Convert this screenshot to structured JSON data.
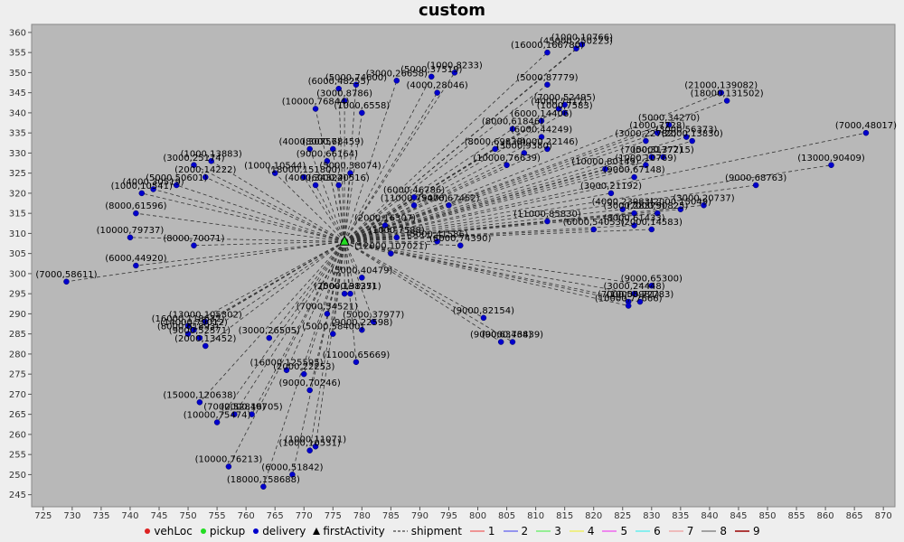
{
  "chart_data": {
    "type": "scatter",
    "title": "custom",
    "xlabel": "",
    "ylabel": "",
    "xlim": [
      723,
      872
    ],
    "ylim": [
      242,
      362
    ],
    "x_ticks": [
      725,
      730,
      735,
      740,
      745,
      750,
      755,
      760,
      765,
      770,
      775,
      780,
      785,
      790,
      795,
      800,
      805,
      810,
      815,
      820,
      825,
      830,
      835,
      840,
      845,
      850,
      855,
      860,
      865,
      870
    ],
    "y_ticks": [
      245,
      250,
      255,
      260,
      265,
      270,
      275,
      280,
      285,
      290,
      295,
      300,
      305,
      310,
      315,
      320,
      325,
      330,
      335,
      340,
      345,
      350,
      355,
      360
    ],
    "grid": false,
    "legend_placement": "bottom",
    "depot": {
      "x": 777,
      "y": 308
    },
    "legend": [
      {
        "name": "vehLoc",
        "marker": "dot",
        "color": "#dd2222"
      },
      {
        "name": "pickup",
        "marker": "dot",
        "color": "#22dd22"
      },
      {
        "name": "delivery",
        "marker": "dot",
        "color": "#0000cc"
      },
      {
        "name": "firstActivity",
        "marker": "triangle",
        "color": "#000000"
      },
      {
        "name": "shipment",
        "marker": "dash",
        "color": "#444444"
      },
      {
        "name": "1",
        "marker": "line",
        "color": "#ee7777"
      },
      {
        "name": "2",
        "marker": "line",
        "color": "#7777ee"
      },
      {
        "name": "3",
        "marker": "line",
        "color": "#77ee77"
      },
      {
        "name": "4",
        "marker": "line",
        "color": "#eeee66"
      },
      {
        "name": "5",
        "marker": "line",
        "color": "#ee66ee"
      },
      {
        "name": "6",
        "marker": "line",
        "color": "#66eeee"
      },
      {
        "name": "7",
        "marker": "line",
        "color": "#eeaaaa"
      },
      {
        "name": "8",
        "marker": "line",
        "color": "#888888"
      },
      {
        "name": "9",
        "marker": "line",
        "color": "#990000"
      }
    ],
    "points": [
      {
        "x": 812,
        "y": 355,
        "label": "(16000,166780)"
      },
      {
        "x": 817,
        "y": 356,
        "label": "(45000,250223)"
      },
      {
        "x": 818,
        "y": 357,
        "label": "(1000,10766)"
      },
      {
        "x": 843,
        "y": 343,
        "label": "(18000,131502)"
      },
      {
        "x": 842,
        "y": 345,
        "label": "(21000,139082)"
      },
      {
        "x": 812,
        "y": 347,
        "label": "(5000,87779)"
      },
      {
        "x": 815,
        "y": 342,
        "label": "(7000,52495)"
      },
      {
        "x": 815,
        "y": 340,
        "label": "(1000,7583)"
      },
      {
        "x": 814,
        "y": 341,
        "label": "(4000,7417)"
      },
      {
        "x": 811,
        "y": 338,
        "label": "(6000,14406)"
      },
      {
        "x": 806,
        "y": 336,
        "label": "(8000,61846)"
      },
      {
        "x": 811,
        "y": 334,
        "label": "(6000,44249)"
      },
      {
        "x": 812,
        "y": 331,
        "label": "(4000,22146)"
      },
      {
        "x": 808,
        "y": 330,
        "label": "(3000,9380)"
      },
      {
        "x": 803,
        "y": 331,
        "label": "(8000,69838)"
      },
      {
        "x": 805,
        "y": 327,
        "label": "(10000,76639)"
      },
      {
        "x": 833,
        "y": 337,
        "label": "(5000,34270)"
      },
      {
        "x": 831,
        "y": 335,
        "label": "(1000,7728)"
      },
      {
        "x": 836,
        "y": 334,
        "label": "(3000,56373)"
      },
      {
        "x": 837,
        "y": 333,
        "label": "(2000,13830)"
      },
      {
        "x": 829,
        "y": 333,
        "label": "(3000,22782)"
      },
      {
        "x": 867,
        "y": 335,
        "label": "(7000,48017)"
      },
      {
        "x": 861,
        "y": 327,
        "label": "(13000,90409)"
      },
      {
        "x": 848,
        "y": 322,
        "label": "(9000,68763)"
      },
      {
        "x": 830,
        "y": 329,
        "label": "(7000,31772)"
      },
      {
        "x": 832,
        "y": 329,
        "label": "(5000,37715)"
      },
      {
        "x": 829,
        "y": 327,
        "label": "(1000,10769)"
      },
      {
        "x": 827,
        "y": 324,
        "label": "(9000,67148)"
      },
      {
        "x": 822,
        "y": 326,
        "label": "(10000,80149)"
      },
      {
        "x": 823,
        "y": 320,
        "label": "(3000,21192)"
      },
      {
        "x": 825,
        "y": 316,
        "label": "(4000,23983)"
      },
      {
        "x": 827,
        "y": 315,
        "label": "(3000,28379)"
      },
      {
        "x": 831,
        "y": 315,
        "label": "(7000,50825)"
      },
      {
        "x": 835,
        "y": 316,
        "label": "(2000,15049)"
      },
      {
        "x": 839,
        "y": 317,
        "label": "(3000,20737)"
      },
      {
        "x": 827,
        "y": 312,
        "label": "(8000,61433)"
      },
      {
        "x": 830,
        "y": 311,
        "label": "(2000,14583)"
      },
      {
        "x": 820,
        "y": 311,
        "label": "(6000,54053)"
      },
      {
        "x": 812,
        "y": 313,
        "label": "(11000,85830)"
      },
      {
        "x": 795,
        "y": 317,
        "label": "(9000,67452)"
      },
      {
        "x": 789,
        "y": 319,
        "label": "(6000,46786)"
      },
      {
        "x": 789,
        "y": 317,
        "label": "(11000,75476)"
      },
      {
        "x": 784,
        "y": 312,
        "label": "(2000,16307)"
      },
      {
        "x": 786,
        "y": 309,
        "label": "(1000,7588)"
      },
      {
        "x": 793,
        "y": 308,
        "label": "(5000,41586)"
      },
      {
        "x": 797,
        "y": 307,
        "label": "(8000,74390)"
      },
      {
        "x": 785,
        "y": 305,
        "label": "(12000,107021)"
      },
      {
        "x": 830,
        "y": 297,
        "label": "(9000,65300)"
      },
      {
        "x": 827,
        "y": 295,
        "label": "(3000,24448)"
      },
      {
        "x": 826,
        "y": 293,
        "label": "(7000,55981)"
      },
      {
        "x": 828,
        "y": 293,
        "label": "(10000,72783)"
      },
      {
        "x": 826,
        "y": 292,
        "label": "(10000,77666)"
      },
      {
        "x": 801,
        "y": 289,
        "label": "(9000,82154)"
      },
      {
        "x": 804,
        "y": 283,
        "label": "(9000,63468)"
      },
      {
        "x": 806,
        "y": 283,
        "label": "(9000,73439)"
      },
      {
        "x": 780,
        "y": 299,
        "label": "(5000,40479)"
      },
      {
        "x": 778,
        "y": 295,
        "label": "(5000,38351)"
      },
      {
        "x": 777,
        "y": 295,
        "label": "(2000,19127)"
      },
      {
        "x": 774,
        "y": 290,
        "label": "(7000,54521)"
      },
      {
        "x": 782,
        "y": 288,
        "label": "(5000,37977)"
      },
      {
        "x": 780,
        "y": 286,
        "label": "(9000,22598)"
      },
      {
        "x": 775,
        "y": 285,
        "label": "(5000,58400)"
      },
      {
        "x": 779,
        "y": 278,
        "label": "(11000,65669)"
      },
      {
        "x": 771,
        "y": 271,
        "label": "(9000,70246)"
      },
      {
        "x": 764,
        "y": 284,
        "label": "(3000,26505)"
      },
      {
        "x": 767,
        "y": 276,
        "label": "(16000,125595)"
      },
      {
        "x": 770,
        "y": 275,
        "label": "(2000,22253)"
      },
      {
        "x": 771,
        "y": 256,
        "label": "(1000,10531)"
      },
      {
        "x": 772,
        "y": 257,
        "label": "(1000,11071)"
      },
      {
        "x": 753,
        "y": 288,
        "label": "(13000,105302)"
      },
      {
        "x": 750,
        "y": 287,
        "label": "(16000,118632)"
      },
      {
        "x": 751,
        "y": 286,
        "label": "(14000,79012)"
      },
      {
        "x": 750,
        "y": 285,
        "label": "(8000,61893)"
      },
      {
        "x": 752,
        "y": 284,
        "label": "(9000,52571)"
      },
      {
        "x": 753,
        "y": 282,
        "label": "(2000,13452)"
      },
      {
        "x": 752,
        "y": 268,
        "label": "(15000,120638)"
      },
      {
        "x": 758,
        "y": 265,
        "label": "(7000,52840)"
      },
      {
        "x": 761,
        "y": 265,
        "label": "(2000,16705)"
      },
      {
        "x": 755,
        "y": 263,
        "label": "(10000,75474)"
      },
      {
        "x": 757,
        "y": 252,
        "label": "(10000,76213)"
      },
      {
        "x": 768,
        "y": 250,
        "label": "(6000,51842)"
      },
      {
        "x": 763,
        "y": 247,
        "label": "(18000,158688)"
      },
      {
        "x": 729,
        "y": 298,
        "label": "(7000,58611)"
      },
      {
        "x": 741,
        "y": 302,
        "label": "(6000,44920)"
      },
      {
        "x": 751,
        "y": 307,
        "label": "(8000,70071)"
      },
      {
        "x": 740,
        "y": 309,
        "label": "(10000,79737)"
      },
      {
        "x": 741,
        "y": 315,
        "label": "(8000,61596)"
      },
      {
        "x": 742,
        "y": 320,
        "label": "(1000,10541)"
      },
      {
        "x": 744,
        "y": 321,
        "label": "(4000,30519)"
      },
      {
        "x": 748,
        "y": 322,
        "label": "(5000,50601)"
      },
      {
        "x": 753,
        "y": 324,
        "label": "(2000,14222)"
      },
      {
        "x": 751,
        "y": 327,
        "label": "(3000,25174)"
      },
      {
        "x": 754,
        "y": 328,
        "label": "(1000,13883)"
      },
      {
        "x": 765,
        "y": 325,
        "label": "(1000,10544)"
      },
      {
        "x": 770,
        "y": 324,
        "label": "(18000,151800)"
      },
      {
        "x": 772,
        "y": 322,
        "label": "(4000,34322)"
      },
      {
        "x": 776,
        "y": 322,
        "label": "(6000,40516)"
      },
      {
        "x": 778,
        "y": 325,
        "label": "(5000,38074)"
      },
      {
        "x": 774,
        "y": 328,
        "label": "(9000,66164)"
      },
      {
        "x": 775,
        "y": 331,
        "label": "(8000,68459)"
      },
      {
        "x": 771,
        "y": 331,
        "label": "(4000,30757)"
      },
      {
        "x": 780,
        "y": 340,
        "label": "(1000,6558)"
      },
      {
        "x": 772,
        "y": 341,
        "label": "(10000,76844)"
      },
      {
        "x": 777,
        "y": 343,
        "label": "(3000,8786)"
      },
      {
        "x": 776,
        "y": 346,
        "label": "(6000,48255)"
      },
      {
        "x": 779,
        "y": 347,
        "label": "(5000,74600)"
      },
      {
        "x": 786,
        "y": 348,
        "label": "(3000,26658)"
      },
      {
        "x": 792,
        "y": 349,
        "label": "(5000,37519)"
      },
      {
        "x": 796,
        "y": 350,
        "label": "(1000,8233)"
      },
      {
        "x": 793,
        "y": 345,
        "label": "(4000,28046)"
      }
    ]
  }
}
